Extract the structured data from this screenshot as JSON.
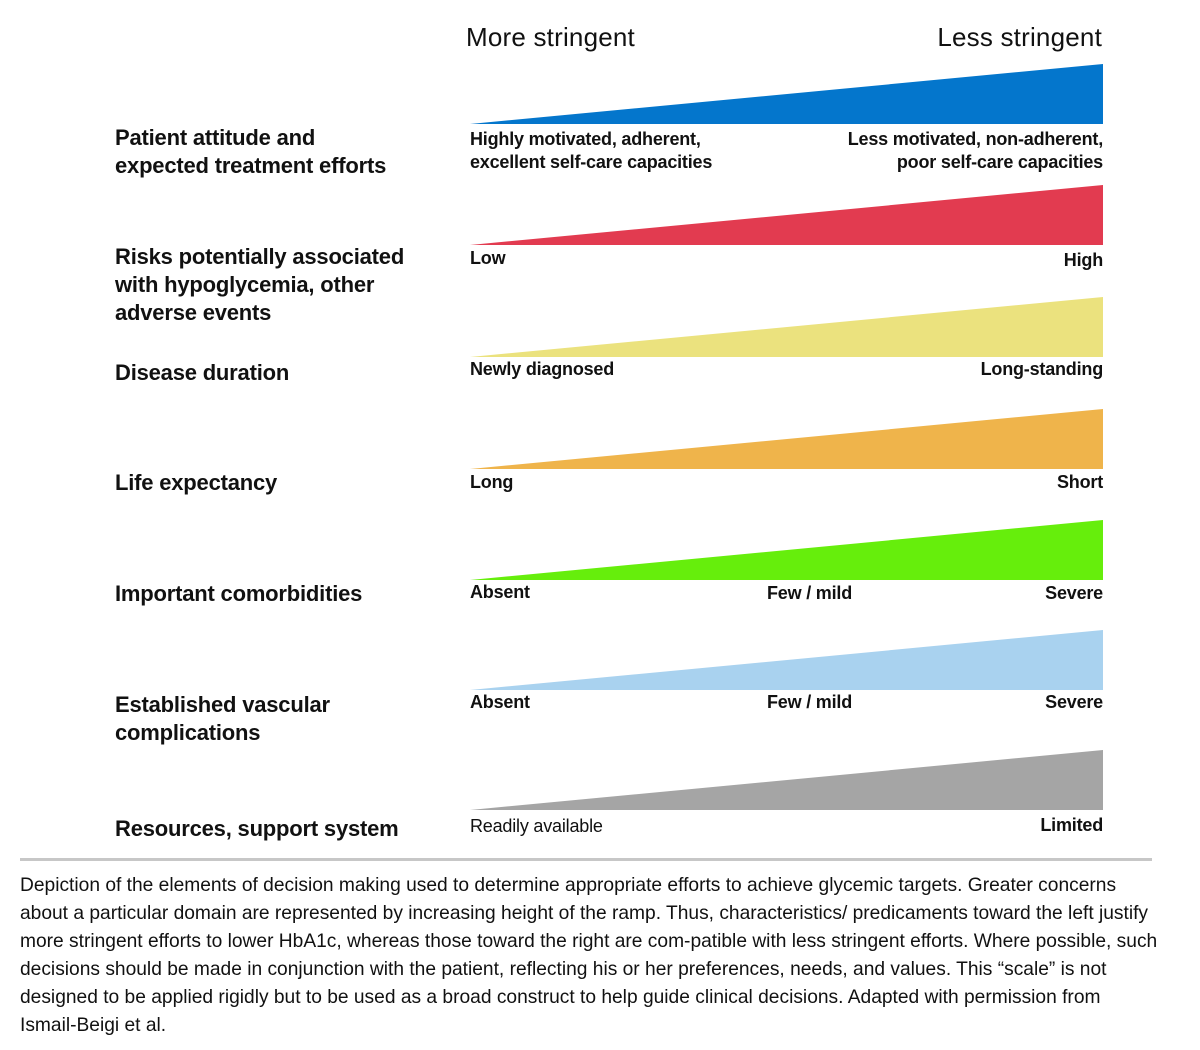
{
  "header": {
    "left": "More stringent",
    "right": "Less stringent"
  },
  "rows": [
    {
      "label": "Patient attitude and\nexpected treatment efforts",
      "color": "#0476cc",
      "left_pole": "Highly motivated, adherent,\nexcellent self-care capacities",
      "right_pole": "Less motivated, non-adherent,\npoor self-care capacities"
    },
    {
      "label": "Risks potentially associated\nwith hypoglycemia, other\nadverse events",
      "color": "#e23b50",
      "left_pole": "Low",
      "right_pole": "High"
    },
    {
      "label": "Disease duration",
      "color": "#ebe27e",
      "left_pole": "Newly diagnosed",
      "right_pole": "Long-standing"
    },
    {
      "label": "Life expectancy",
      "color": "#efb44b",
      "left_pole": "Long",
      "right_pole": "Short"
    },
    {
      "label": "Important comorbidities",
      "color": "#66ee0c",
      "left_pole": "Absent",
      "mid_pole": "Few / mild",
      "right_pole": "Severe"
    },
    {
      "label": "Established vascular\ncomplications",
      "color": "#a9d2ef",
      "left_pole": "Absent",
      "mid_pole": "Few / mild",
      "right_pole": "Severe"
    },
    {
      "label": "Resources, support system",
      "color": "#a5a5a5",
      "left_pole": "Readily available",
      "right_pole": "Limited"
    }
  ],
  "caption": "Depiction of the elements of decision making used to determine appropriate efforts to achieve glycemic targets. Greater concerns about a particular domain are represented by increasing height of the ramp. Thus, characteristics/ predicaments toward the left justify more stringent efforts to lower HbA1c, whereas those toward the right are com-patible with less stringent efforts. Where possible, such decisions should be made in conjunction with the patient, reflecting his or her preferences, needs, and values. This “scale” is not designed to be applied rigidly but to be used as a broad construct to help guide clinical decisions. Adapted with permission from Ismail-Beigi et al."
}
